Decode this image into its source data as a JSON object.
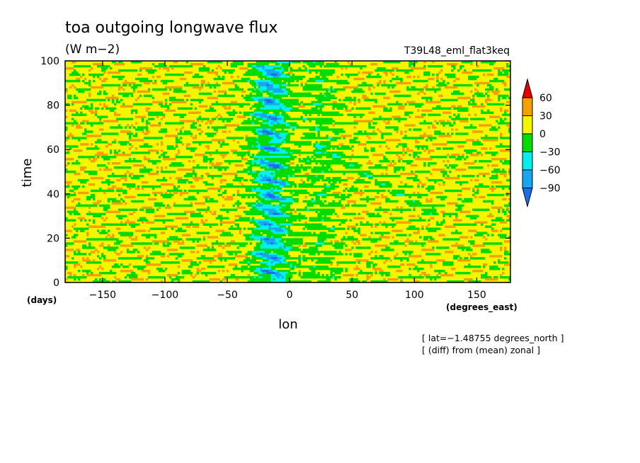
{
  "chart_data": {
    "type": "heatmap",
    "title": "toa outgoing longwave flux",
    "units": "(W m−2)",
    "run_label": "T39L48_eml_flat3keq",
    "xlabel": "lon",
    "ylabel": "time",
    "x_unit_label": "(degrees_east)",
    "y_unit_label": "(days)",
    "xlim": [
      -180,
      177
    ],
    "ylim": [
      0,
      100
    ],
    "x_ticks": [
      -150,
      -100,
      -50,
      0,
      50,
      100,
      150
    ],
    "y_ticks": [
      0,
      20,
      40,
      60,
      80,
      100
    ],
    "x_tick_labels": [
      "−150",
      "−100",
      "−50",
      "0",
      "50",
      "100",
      "150"
    ],
    "y_tick_labels": [
      "0",
      "20",
      "40",
      "60",
      "80",
      "100"
    ],
    "notes": [
      "[ lat=−1.48755 degrees_north ]",
      "[ (diff) from (mean) zonal ]"
    ],
    "colorbar": {
      "levels": [
        -90,
        -60,
        -30,
        0,
        30,
        60
      ],
      "level_labels": [
        "−90",
        "−60",
        "−30",
        "0",
        "30",
        "60"
      ],
      "colors": [
        "#1a6ee8",
        "#19a6f0",
        "#00f0f0",
        "#00dc00",
        "#f5f500",
        "#f5a000",
        "#e60000"
      ]
    },
    "features": {
      "convective_band_lon": -15,
      "convective_band_width": 20,
      "min_value_in_band": -90,
      "eastward_propagating_signal": {
        "lon_start": 20,
        "time_start": 62,
        "lon_end": 120,
        "time_end": 30
      }
    }
  }
}
